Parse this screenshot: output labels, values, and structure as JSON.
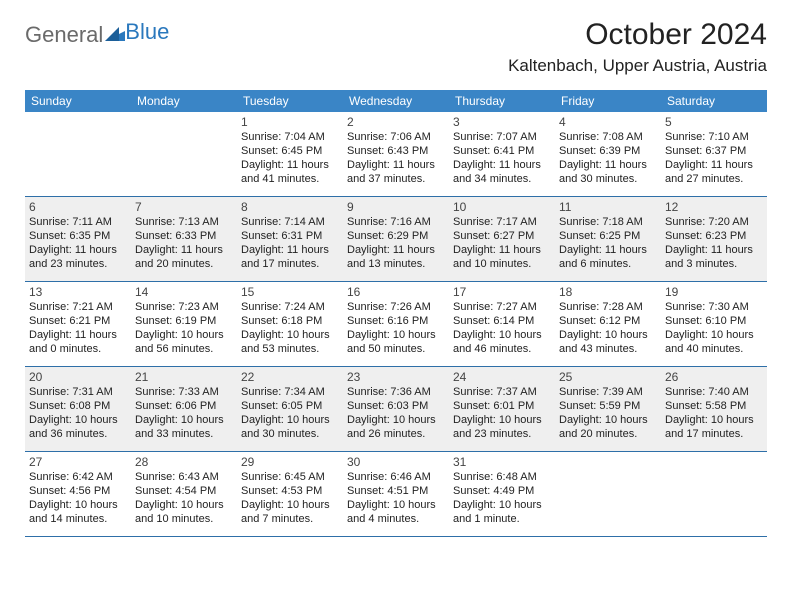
{
  "logo": {
    "firstWord": "General",
    "secondWord": "Blue"
  },
  "title": "October 2024",
  "location": "Kaltenbach, Upper Austria, Austria",
  "colors": {
    "headerBar": "#3a85c6",
    "rowBorder": "#2e6fa8",
    "altRow": "#efefef",
    "logoGray": "#6a6a6a",
    "logoBlue": "#2a78bd"
  },
  "weekdays": [
    "Sunday",
    "Monday",
    "Tuesday",
    "Wednesday",
    "Thursday",
    "Friday",
    "Saturday"
  ],
  "weeks": [
    {
      "alt": false,
      "days": [
        null,
        null,
        {
          "n": "1",
          "sr": "Sunrise: 7:04 AM",
          "ss": "Sunset: 6:45 PM",
          "dl1": "Daylight: 11 hours",
          "dl2": "and 41 minutes."
        },
        {
          "n": "2",
          "sr": "Sunrise: 7:06 AM",
          "ss": "Sunset: 6:43 PM",
          "dl1": "Daylight: 11 hours",
          "dl2": "and 37 minutes."
        },
        {
          "n": "3",
          "sr": "Sunrise: 7:07 AM",
          "ss": "Sunset: 6:41 PM",
          "dl1": "Daylight: 11 hours",
          "dl2": "and 34 minutes."
        },
        {
          "n": "4",
          "sr": "Sunrise: 7:08 AM",
          "ss": "Sunset: 6:39 PM",
          "dl1": "Daylight: 11 hours",
          "dl2": "and 30 minutes."
        },
        {
          "n": "5",
          "sr": "Sunrise: 7:10 AM",
          "ss": "Sunset: 6:37 PM",
          "dl1": "Daylight: 11 hours",
          "dl2": "and 27 minutes."
        }
      ]
    },
    {
      "alt": true,
      "days": [
        {
          "n": "6",
          "sr": "Sunrise: 7:11 AM",
          "ss": "Sunset: 6:35 PM",
          "dl1": "Daylight: 11 hours",
          "dl2": "and 23 minutes."
        },
        {
          "n": "7",
          "sr": "Sunrise: 7:13 AM",
          "ss": "Sunset: 6:33 PM",
          "dl1": "Daylight: 11 hours",
          "dl2": "and 20 minutes."
        },
        {
          "n": "8",
          "sr": "Sunrise: 7:14 AM",
          "ss": "Sunset: 6:31 PM",
          "dl1": "Daylight: 11 hours",
          "dl2": "and 17 minutes."
        },
        {
          "n": "9",
          "sr": "Sunrise: 7:16 AM",
          "ss": "Sunset: 6:29 PM",
          "dl1": "Daylight: 11 hours",
          "dl2": "and 13 minutes."
        },
        {
          "n": "10",
          "sr": "Sunrise: 7:17 AM",
          "ss": "Sunset: 6:27 PM",
          "dl1": "Daylight: 11 hours",
          "dl2": "and 10 minutes."
        },
        {
          "n": "11",
          "sr": "Sunrise: 7:18 AM",
          "ss": "Sunset: 6:25 PM",
          "dl1": "Daylight: 11 hours",
          "dl2": "and 6 minutes."
        },
        {
          "n": "12",
          "sr": "Sunrise: 7:20 AM",
          "ss": "Sunset: 6:23 PM",
          "dl1": "Daylight: 11 hours",
          "dl2": "and 3 minutes."
        }
      ]
    },
    {
      "alt": false,
      "days": [
        {
          "n": "13",
          "sr": "Sunrise: 7:21 AM",
          "ss": "Sunset: 6:21 PM",
          "dl1": "Daylight: 11 hours",
          "dl2": "and 0 minutes."
        },
        {
          "n": "14",
          "sr": "Sunrise: 7:23 AM",
          "ss": "Sunset: 6:19 PM",
          "dl1": "Daylight: 10 hours",
          "dl2": "and 56 minutes."
        },
        {
          "n": "15",
          "sr": "Sunrise: 7:24 AM",
          "ss": "Sunset: 6:18 PM",
          "dl1": "Daylight: 10 hours",
          "dl2": "and 53 minutes."
        },
        {
          "n": "16",
          "sr": "Sunrise: 7:26 AM",
          "ss": "Sunset: 6:16 PM",
          "dl1": "Daylight: 10 hours",
          "dl2": "and 50 minutes."
        },
        {
          "n": "17",
          "sr": "Sunrise: 7:27 AM",
          "ss": "Sunset: 6:14 PM",
          "dl1": "Daylight: 10 hours",
          "dl2": "and 46 minutes."
        },
        {
          "n": "18",
          "sr": "Sunrise: 7:28 AM",
          "ss": "Sunset: 6:12 PM",
          "dl1": "Daylight: 10 hours",
          "dl2": "and 43 minutes."
        },
        {
          "n": "19",
          "sr": "Sunrise: 7:30 AM",
          "ss": "Sunset: 6:10 PM",
          "dl1": "Daylight: 10 hours",
          "dl2": "and 40 minutes."
        }
      ]
    },
    {
      "alt": true,
      "days": [
        {
          "n": "20",
          "sr": "Sunrise: 7:31 AM",
          "ss": "Sunset: 6:08 PM",
          "dl1": "Daylight: 10 hours",
          "dl2": "and 36 minutes."
        },
        {
          "n": "21",
          "sr": "Sunrise: 7:33 AM",
          "ss": "Sunset: 6:06 PM",
          "dl1": "Daylight: 10 hours",
          "dl2": "and 33 minutes."
        },
        {
          "n": "22",
          "sr": "Sunrise: 7:34 AM",
          "ss": "Sunset: 6:05 PM",
          "dl1": "Daylight: 10 hours",
          "dl2": "and 30 minutes."
        },
        {
          "n": "23",
          "sr": "Sunrise: 7:36 AM",
          "ss": "Sunset: 6:03 PM",
          "dl1": "Daylight: 10 hours",
          "dl2": "and 26 minutes."
        },
        {
          "n": "24",
          "sr": "Sunrise: 7:37 AM",
          "ss": "Sunset: 6:01 PM",
          "dl1": "Daylight: 10 hours",
          "dl2": "and 23 minutes."
        },
        {
          "n": "25",
          "sr": "Sunrise: 7:39 AM",
          "ss": "Sunset: 5:59 PM",
          "dl1": "Daylight: 10 hours",
          "dl2": "and 20 minutes."
        },
        {
          "n": "26",
          "sr": "Sunrise: 7:40 AM",
          "ss": "Sunset: 5:58 PM",
          "dl1": "Daylight: 10 hours",
          "dl2": "and 17 minutes."
        }
      ]
    },
    {
      "alt": false,
      "days": [
        {
          "n": "27",
          "sr": "Sunrise: 6:42 AM",
          "ss": "Sunset: 4:56 PM",
          "dl1": "Daylight: 10 hours",
          "dl2": "and 14 minutes."
        },
        {
          "n": "28",
          "sr": "Sunrise: 6:43 AM",
          "ss": "Sunset: 4:54 PM",
          "dl1": "Daylight: 10 hours",
          "dl2": "and 10 minutes."
        },
        {
          "n": "29",
          "sr": "Sunrise: 6:45 AM",
          "ss": "Sunset: 4:53 PM",
          "dl1": "Daylight: 10 hours",
          "dl2": "and 7 minutes."
        },
        {
          "n": "30",
          "sr": "Sunrise: 6:46 AM",
          "ss": "Sunset: 4:51 PM",
          "dl1": "Daylight: 10 hours",
          "dl2": "and 4 minutes."
        },
        {
          "n": "31",
          "sr": "Sunrise: 6:48 AM",
          "ss": "Sunset: 4:49 PM",
          "dl1": "Daylight: 10 hours",
          "dl2": "and 1 minute."
        },
        null,
        null
      ]
    }
  ]
}
